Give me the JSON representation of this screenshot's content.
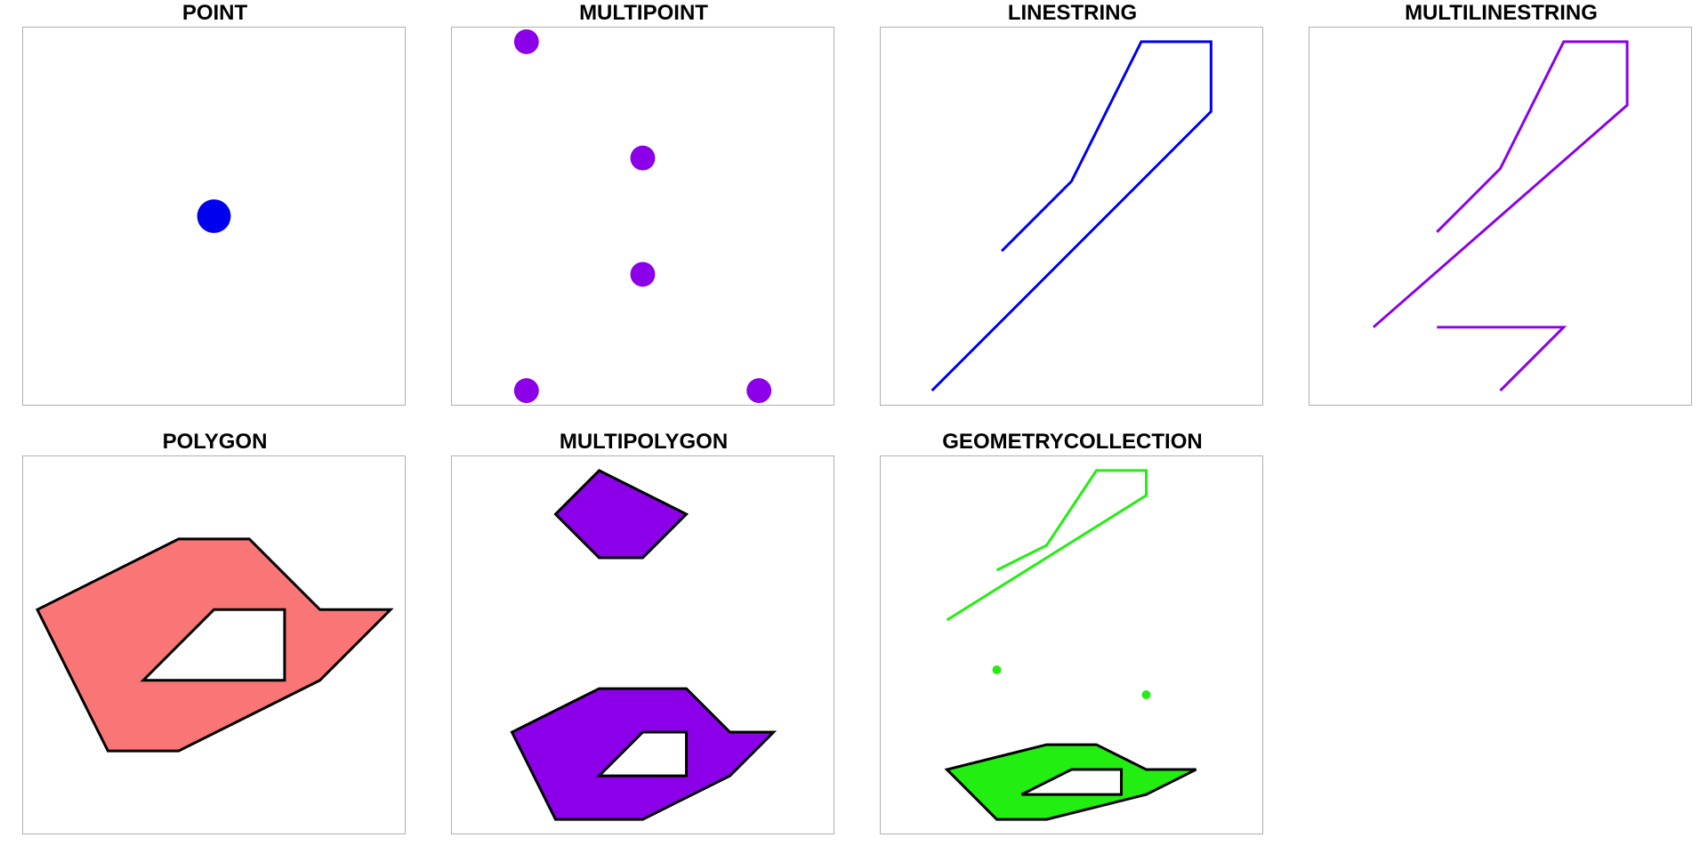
{
  "colors": {
    "blue": "#0000ee",
    "purple": "#8b00e8",
    "salmon": "#fa7676",
    "green": "#22ee11",
    "outline": "#000000",
    "frame": "#b0b0b0"
  },
  "panels": [
    {
      "title": "POINT",
      "geometry": "point",
      "color": "#0000ee",
      "points": [
        [
          5,
          5
        ]
      ]
    },
    {
      "title": "MULTIPOINT",
      "geometry": "multipoint",
      "color": "#8b00e8",
      "points": [
        [
          2,
          10
        ],
        [
          5,
          7
        ],
        [
          5,
          4
        ],
        [
          2,
          1
        ],
        [
          8,
          1
        ]
      ]
    },
    {
      "title": "LINESTRING",
      "geometry": "linestring",
      "color": "#0000ee",
      "lines": [
        [
          [
            3,
            4
          ],
          [
            5,
            6
          ],
          [
            7,
            10
          ],
          [
            9,
            10
          ],
          [
            9,
            8
          ],
          [
            1,
            0
          ]
        ]
      ]
    },
    {
      "title": "MULTILINESTRING",
      "geometry": "multilinestring",
      "color": "#8b00e8",
      "lines": [
        [
          [
            3,
            5
          ],
          [
            5,
            7
          ],
          [
            7,
            11
          ],
          [
            9,
            11
          ],
          [
            9,
            9
          ],
          [
            1,
            2
          ]
        ],
        [
          [
            3,
            2
          ],
          [
            7,
            2
          ],
          [
            5,
            0
          ]
        ]
      ]
    },
    {
      "title": "POLYGON",
      "geometry": "polygon",
      "color": "#fa7676",
      "polygons": [
        {
          "outer": [
            [
              0,
              4
            ],
            [
              4,
              6
            ],
            [
              6,
              6
            ],
            [
              8,
              4
            ],
            [
              10,
              4
            ],
            [
              8,
              2
            ],
            [
              4,
              0
            ],
            [
              2,
              0
            ]
          ],
          "holes": [
            [
              [
                3,
                2
              ],
              [
                5,
                4
              ],
              [
                7,
                4
              ],
              [
                7,
                2
              ]
            ]
          ]
        }
      ]
    },
    {
      "title": "MULTIPOLYGON",
      "geometry": "multipolygon",
      "color": "#8b00e8",
      "polygons": [
        {
          "outer": [
            [
              3,
              4
            ],
            [
              5,
              5
            ],
            [
              7,
              5
            ],
            [
              8,
              4
            ],
            [
              9,
              4
            ],
            [
              8,
              3
            ],
            [
              6,
              2
            ],
            [
              4,
              2
            ]
          ],
          "holes": [
            [
              [
                5,
                3
              ],
              [
                6,
                4
              ],
              [
                7,
                4
              ],
              [
                7,
                3
              ]
            ]
          ]
        },
        {
          "outer": [
            [
              4,
              9
            ],
            [
              5,
              10
            ],
            [
              7,
              9
            ],
            [
              6,
              8
            ],
            [
              5,
              8
            ]
          ],
          "holes": []
        }
      ]
    },
    {
      "title": "GEOMETRYCOLLECTION",
      "geometry": "geometrycollection",
      "color": "#22ee11",
      "points": [
        [
          4,
          5
        ],
        [
          7,
          4.5
        ]
      ],
      "lines": [
        [
          [
            4,
            7
          ],
          [
            5,
            7.5
          ],
          [
            6,
            9
          ],
          [
            7,
            9
          ],
          [
            7,
            8.5
          ],
          [
            3,
            6
          ]
        ]
      ],
      "polygons": [
        {
          "outer": [
            [
              3,
              3
            ],
            [
              5,
              3.5
            ],
            [
              6,
              3.5
            ],
            [
              7,
              3
            ],
            [
              8,
              3
            ],
            [
              7,
              2.5
            ],
            [
              5,
              2
            ],
            [
              4,
              2
            ]
          ],
          "holes": [
            [
              [
                4.5,
                2.5
              ],
              [
                5.5,
                3
              ],
              [
                6.5,
                3
              ],
              [
                6.5,
                2.5
              ]
            ]
          ]
        }
      ]
    }
  ]
}
